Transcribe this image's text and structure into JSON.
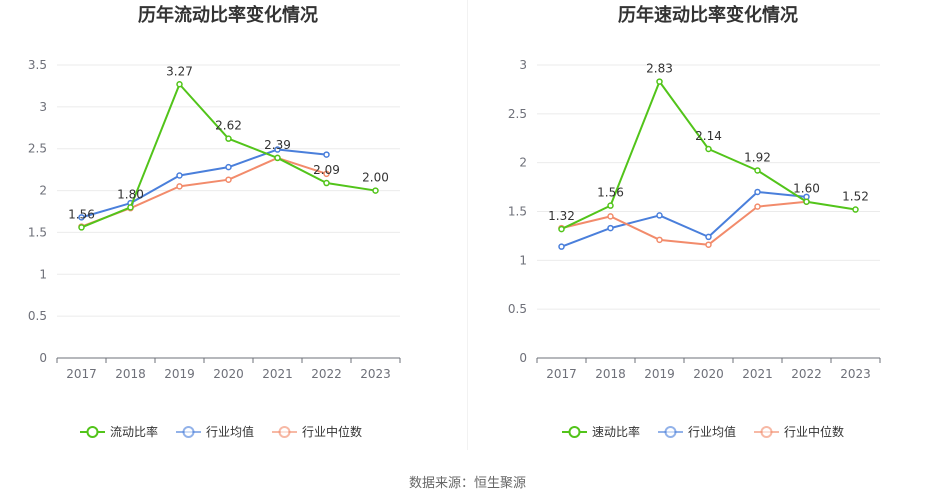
{
  "source_label": "数据来源：恒生聚源",
  "colors": {
    "company": "#52c41a",
    "industry_avg": "#4a7fdb",
    "industry_median": "#f28b6b",
    "grid": "#ebebeb",
    "axis": "#6e7079"
  },
  "chart_data": [
    {
      "type": "line",
      "title": "历年流动比率变化情况",
      "categories": [
        "2017",
        "2018",
        "2019",
        "2020",
        "2021",
        "2022",
        "2023"
      ],
      "ylim": [
        0,
        3.5
      ],
      "yticks": [
        "0",
        "0.5",
        "1",
        "1.5",
        "2",
        "2.5",
        "3",
        "3.5"
      ],
      "grid": true,
      "legend_position": "bottom",
      "series": [
        {
          "name": "流动比率",
          "color": "#52c41a",
          "values": [
            1.56,
            1.8,
            3.27,
            2.62,
            2.39,
            2.09,
            2.0
          ],
          "labels": [
            "1.56",
            "1.80",
            "3.27",
            "2.62",
            "2.39",
            "2.09",
            "2.00"
          ]
        },
        {
          "name": "行业均值",
          "color": "#4a7fdb",
          "values": [
            1.68,
            1.85,
            2.18,
            2.28,
            2.49,
            2.43,
            null
          ]
        },
        {
          "name": "行业中位数",
          "color": "#f28b6b",
          "values": [
            1.57,
            1.79,
            2.05,
            2.13,
            2.39,
            2.2,
            null
          ]
        }
      ]
    },
    {
      "type": "line",
      "title": "历年速动比率变化情况",
      "categories": [
        "2017",
        "2018",
        "2019",
        "2020",
        "2021",
        "2022",
        "2023"
      ],
      "ylim": [
        0,
        3
      ],
      "yticks": [
        "0",
        "0.5",
        "1",
        "1.5",
        "2",
        "2.5",
        "3"
      ],
      "grid": true,
      "legend_position": "bottom",
      "series": [
        {
          "name": "速动比率",
          "color": "#52c41a",
          "values": [
            1.32,
            1.56,
            2.83,
            2.14,
            1.92,
            1.6,
            1.52
          ],
          "labels": [
            "1.32",
            "1.56",
            "2.83",
            "2.14",
            "1.92",
            "1.60",
            "1.52"
          ]
        },
        {
          "name": "行业均值",
          "color": "#4a7fdb",
          "values": [
            1.14,
            1.33,
            1.46,
            1.24,
            1.7,
            1.65,
            null
          ]
        },
        {
          "name": "行业中位数",
          "color": "#f28b6b",
          "values": [
            1.33,
            1.45,
            1.21,
            1.16,
            1.55,
            1.6,
            null
          ]
        }
      ]
    }
  ]
}
